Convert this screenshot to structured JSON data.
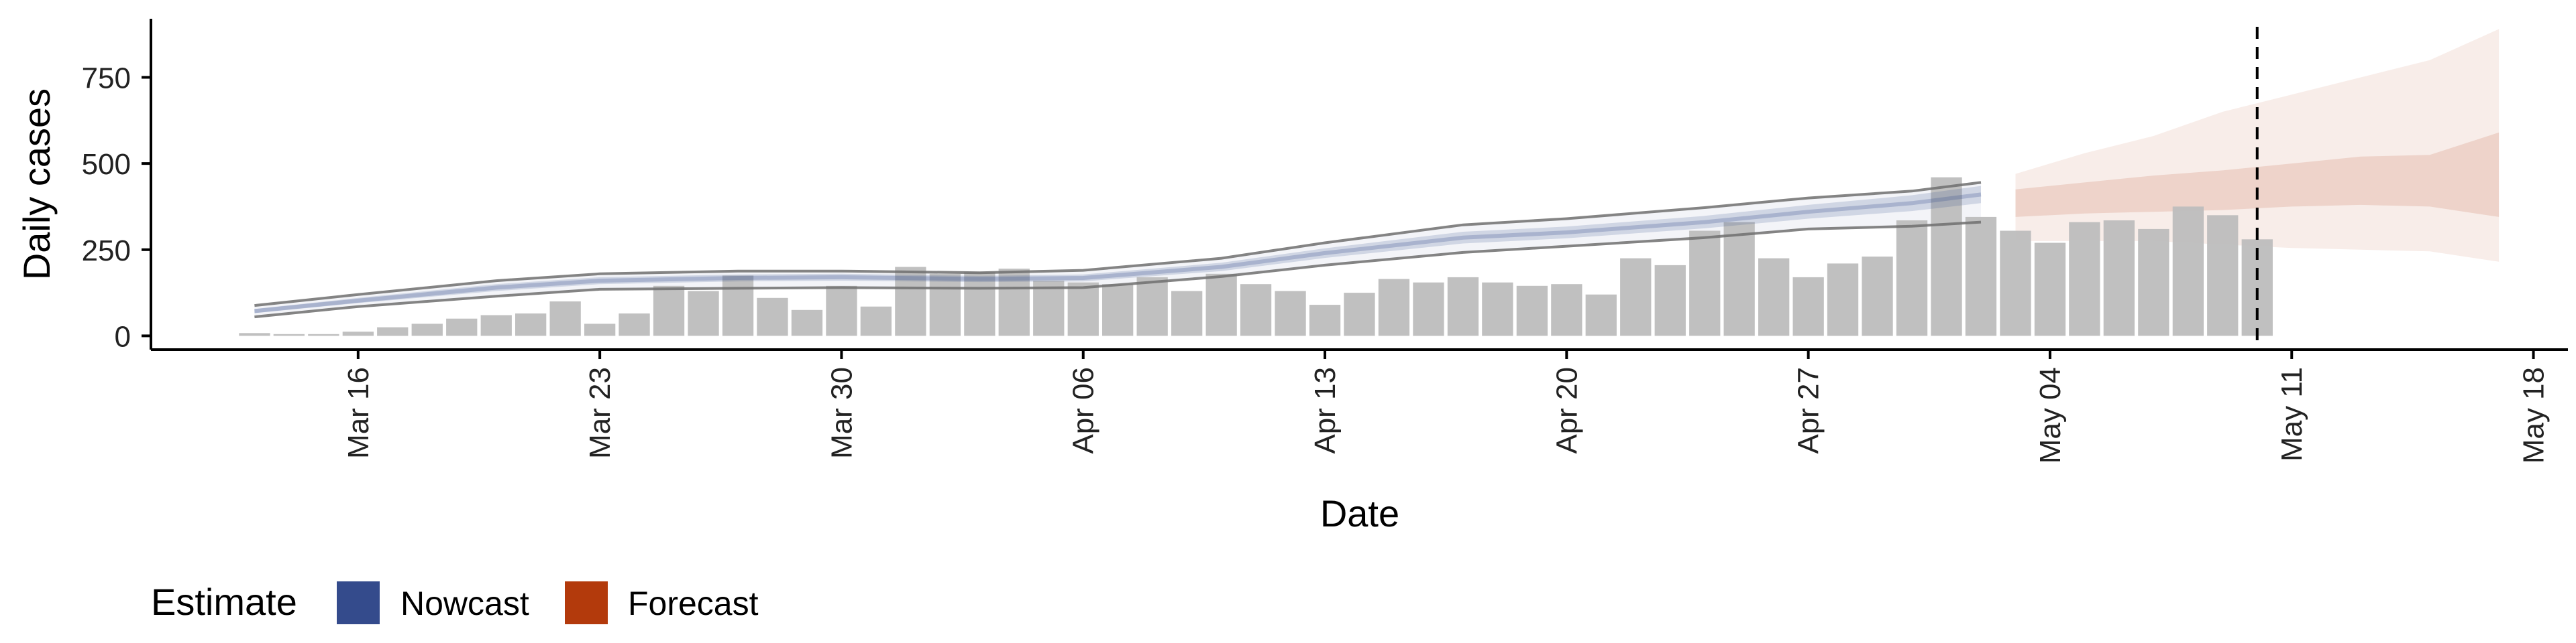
{
  "chart_data": {
    "type": "bar",
    "title": "",
    "xlabel": "Date",
    "ylabel": "Daily cases",
    "x_ticks": [
      "Mar 16",
      "Mar 23",
      "Mar 30",
      "Apr 06",
      "Apr 13",
      "Apr 20",
      "Apr 27",
      "May 04",
      "May 11",
      "May 18"
    ],
    "y_ticks": [
      0,
      250,
      500,
      750
    ],
    "ylim": [
      -40,
      920
    ],
    "xlim": [
      "2020-03-10",
      "2020-05-19"
    ],
    "categories": [
      "2020-03-13",
      "2020-03-14",
      "2020-03-15",
      "2020-03-16",
      "2020-03-17",
      "2020-03-18",
      "2020-03-19",
      "2020-03-20",
      "2020-03-21",
      "2020-03-22",
      "2020-03-23",
      "2020-03-24",
      "2020-03-25",
      "2020-03-26",
      "2020-03-27",
      "2020-03-28",
      "2020-03-29",
      "2020-03-30",
      "2020-03-31",
      "2020-04-01",
      "2020-04-02",
      "2020-04-03",
      "2020-04-04",
      "2020-04-05",
      "2020-04-06",
      "2020-04-07",
      "2020-04-08",
      "2020-04-09",
      "2020-04-10",
      "2020-04-11",
      "2020-04-12",
      "2020-04-13",
      "2020-04-14",
      "2020-04-15",
      "2020-04-16",
      "2020-04-17",
      "2020-04-18",
      "2020-04-19",
      "2020-04-20",
      "2020-04-21",
      "2020-04-22",
      "2020-04-23",
      "2020-04-24",
      "2020-04-25",
      "2020-04-26",
      "2020-04-27",
      "2020-04-28",
      "2020-04-29",
      "2020-04-30",
      "2020-05-01",
      "2020-05-02",
      "2020-05-03",
      "2020-05-04",
      "2020-05-05",
      "2020-05-06",
      "2020-05-07",
      "2020-05-08",
      "2020-05-09",
      "2020-05-10"
    ],
    "values": [
      8,
      5,
      5,
      12,
      25,
      35,
      50,
      60,
      65,
      100,
      35,
      65,
      145,
      130,
      175,
      110,
      75,
      145,
      85,
      200,
      180,
      185,
      195,
      160,
      155,
      150,
      170,
      130,
      180,
      150,
      130,
      90,
      125,
      165,
      155,
      170,
      155,
      145,
      150,
      120,
      225,
      205,
      305,
      330,
      225,
      170,
      210,
      230,
      335,
      460,
      345,
      305,
      270,
      330,
      335,
      310,
      375,
      350,
      280
    ],
    "series": [
      {
        "name": "Nowcast",
        "dates": [
          "2020-03-13",
          "2020-03-16",
          "2020-03-20",
          "2020-03-23",
          "2020-03-27",
          "2020-03-30",
          "2020-04-03",
          "2020-04-06",
          "2020-04-10",
          "2020-04-13",
          "2020-04-17",
          "2020-04-20",
          "2020-04-24",
          "2020-04-27",
          "2020-04-30",
          "2020-05-02"
        ],
        "median": [
          72,
          102,
          140,
          160,
          168,
          170,
          165,
          168,
          200,
          240,
          285,
          300,
          330,
          360,
          385,
          410
        ],
        "inner_lower": [
          66,
          95,
          130,
          150,
          158,
          160,
          156,
          158,
          188,
          226,
          268,
          283,
          312,
          340,
          362,
          385
        ],
        "inner_upper": [
          78,
          110,
          150,
          170,
          178,
          180,
          174,
          178,
          212,
          254,
          302,
          317,
          348,
          380,
          408,
          435
        ],
        "outer_lower": [
          55,
          85,
          115,
          135,
          138,
          140,
          138,
          140,
          172,
          205,
          242,
          260,
          285,
          310,
          318,
          330
        ],
        "outer_upper": [
          88,
          120,
          160,
          180,
          188,
          188,
          183,
          190,
          225,
          270,
          322,
          340,
          372,
          400,
          420,
          445
        ]
      },
      {
        "name": "Forecast",
        "dates": [
          "2020-05-03",
          "2020-05-05",
          "2020-05-07",
          "2020-05-09",
          "2020-05-11",
          "2020-05-13",
          "2020-05-15",
          "2020-05-17"
        ],
        "inner_lower": [
          345,
          355,
          360,
          365,
          375,
          380,
          375,
          345
        ],
        "inner_upper": [
          425,
          445,
          465,
          480,
          500,
          520,
          525,
          590
        ],
        "outer_lower": [
          275,
          275,
          275,
          265,
          255,
          250,
          245,
          215
        ],
        "outer_upper": [
          470,
          530,
          580,
          650,
          700,
          750,
          800,
          890
        ]
      }
    ],
    "vline_date": "2020-05-10",
    "legend": {
      "title": "Estimate",
      "position": "bottom-left",
      "items": [
        {
          "label": "Nowcast",
          "color": "#344b8c"
        },
        {
          "label": "Forecast",
          "color": "#b33a0c"
        }
      ]
    },
    "colors": {
      "bar": "#bdbdbd",
      "nowcast": "#344b8c",
      "forecast": "#b33a0c",
      "interval_line": "#6e6e6e",
      "axis": "#000000"
    }
  }
}
